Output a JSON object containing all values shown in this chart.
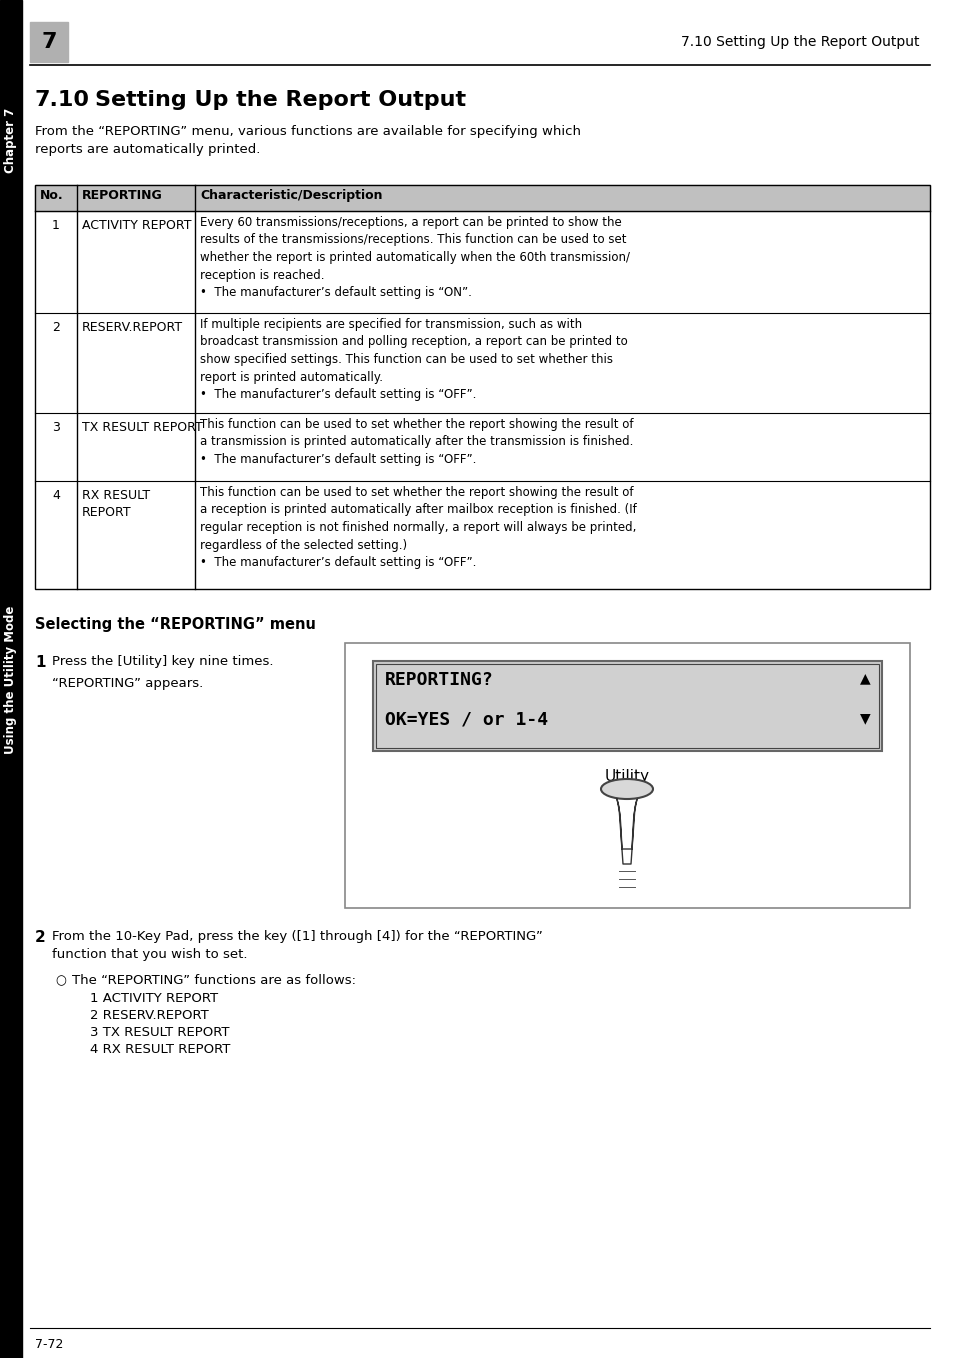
{
  "page_header_number": "7",
  "page_header_text": "7.10 Setting Up the Report Output",
  "section_title_num": "7.10",
  "section_title_rest": "Setting Up the Report Output",
  "intro_text": "From the “REPORTING” menu, various functions are available for specifying which\nreports are automatically printed.",
  "table_headers": [
    "No.",
    "REPORTING",
    "Characteristic/Description"
  ],
  "table_rows": [
    {
      "no": "1",
      "reporting": "ACTIVITY REPORT",
      "description": "Every 60 transmissions/receptions, a report can be printed to show the\nresults of the transmissions/receptions. This function can be used to set\nwhether the report is printed automatically when the 60th transmission/\nreception is reached.\n•  The manufacturer’s default setting is “ON”."
    },
    {
      "no": "2",
      "reporting": "RESERV.REPORT",
      "description": "If multiple recipients are specified for transmission, such as with\nbroadcast transmission and polling reception, a report can be printed to\nshow specified settings. This function can be used to set whether this\nreport is printed automatically.\n•  The manufacturer’s default setting is “OFF”."
    },
    {
      "no": "3",
      "reporting": "TX RESULT REPORT",
      "description": "This function can be used to set whether the report showing the result of\na transmission is printed automatically after the transmission is finished.\n•  The manufacturer’s default setting is “OFF”."
    },
    {
      "no": "4",
      "reporting": "RX RESULT\nREPORT",
      "description": "This function can be used to set whether the report showing the result of\na reception is printed automatically after mailbox reception is finished. (If\nregular reception is not finished normally, a report will always be printed,\nregardless of the selected setting.)\n•  The manufacturer’s default setting is “OFF”."
    }
  ],
  "selecting_heading": "Selecting the “REPORTING” menu",
  "step1_text": "Press the [Utility] key nine times.",
  "step1_sub": "“REPORTING” appears.",
  "lcd_line1": "REPORTING?",
  "lcd_line2": "OK=YES / or 1-4",
  "utility_label": "Utility",
  "step2_text": "From the 10-Key Pad, press the key ([1] through [4]) for the “REPORTING”\nfunction that you wish to set.",
  "step2_sub_intro": "The “REPORTING” functions are as follows:",
  "step2_list": [
    "1 ACTIVITY REPORT",
    "2 RESERV.REPORT",
    "3 TX RESULT REPORT",
    "4 RX RESULT REPORT"
  ],
  "footer_text": "7-72",
  "side_label_top": "Chapter 7",
  "side_label_bottom": "Using the Utility Mode",
  "header_bg": "#c8c8c8",
  "table_header_bg": "#c0c0c0",
  "sidebar_bg": "#000000",
  "sidebar_text_color": "#ffffff",
  "page_bg": "#ffffff",
  "text_color": "#000000"
}
